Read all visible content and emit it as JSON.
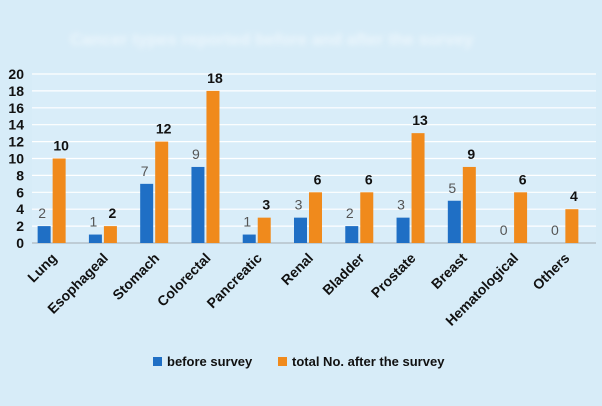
{
  "chart_data": {
    "type": "bar",
    "title": "Cancer types reported before and after the survey",
    "xlabel": "",
    "ylabel": "",
    "ylim": [
      0,
      20
    ],
    "yticks": [
      0,
      2,
      4,
      6,
      8,
      10,
      12,
      14,
      16,
      18,
      20
    ],
    "grid": true,
    "legend_position": "bottom-center",
    "categories": [
      "Lung",
      "Esophageal",
      "Stomach",
      "Colorectal",
      "Pancreatic",
      "Renal",
      "Bladder",
      "Prostate",
      "Breast",
      "Hematological",
      "Others"
    ],
    "series": [
      {
        "name": "before survey",
        "color": "#1f6fc5",
        "label_color": "#555555",
        "values": [
          2,
          1,
          7,
          9,
          1,
          3,
          2,
          3,
          5,
          0,
          0
        ]
      },
      {
        "name": "total No. after the survey",
        "color": "#f08a1c",
        "label_color": "#111111",
        "values": [
          10,
          2,
          12,
          18,
          3,
          6,
          6,
          13,
          9,
          6,
          4
        ]
      }
    ]
  }
}
